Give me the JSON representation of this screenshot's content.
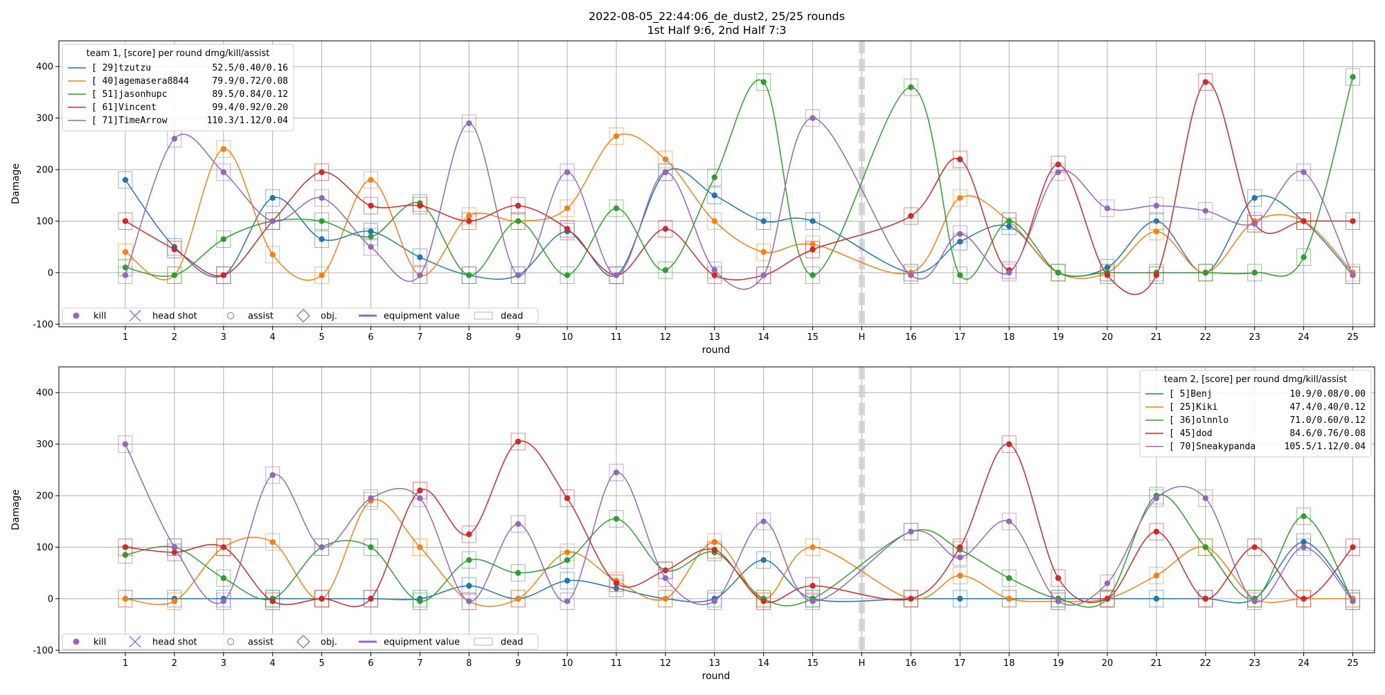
{
  "figure": {
    "title_line1": "2022-08-05_22:44:06_de_dust2, 25/25 rounds",
    "title_line2": "1st Half 9:6, 2nd Half 7:3"
  },
  "colors": {
    "blue": "#1f77b4",
    "orange": "#ff7f0e",
    "green": "#2ca02c",
    "red": "#d62728",
    "purple": "#9467bd",
    "halftime": "#cccccc"
  },
  "chart_data": [
    {
      "type": "line",
      "name": "team 1",
      "ylabel": "Damage",
      "xlabel": "round",
      "ylim": [
        -105,
        450
      ],
      "yticks": [
        -100,
        0,
        100,
        200,
        300,
        400
      ],
      "xtick_labels": [
        "1",
        "2",
        "3",
        "4",
        "5",
        "6",
        "7",
        "8",
        "9",
        "10",
        "11",
        "12",
        "13",
        "14",
        "15",
        "H",
        "16",
        "17",
        "18",
        "19",
        "20",
        "21",
        "22",
        "23",
        "24",
        "25"
      ],
      "halftime_label": "H",
      "grid": true,
      "legend_title": "team 1, [score] per round dmg/kill/assist",
      "legend_placement": "top-left",
      "series": [
        {
          "name": "[ 29]tzutzu",
          "stats": "52.5/0.40/0.16",
          "color": "blue",
          "values": [
            180,
            50,
            -5,
            145,
            65,
            80,
            30,
            -5,
            -5,
            80,
            -5,
            195,
            150,
            100,
            100,
            0,
            60,
            90,
            0,
            10,
            100,
            0,
            145,
            100,
            -5
          ]
        },
        {
          "name": "[ 40]agemasera8844",
          "stats": "79.9/0.72/0.08",
          "color": "orange",
          "values": [
            40,
            -5,
            240,
            35,
            -5,
            180,
            -5,
            110,
            100,
            125,
            265,
            220,
            100,
            40,
            55,
            0,
            145,
            100,
            0,
            0,
            80,
            0,
            100,
            100,
            0
          ]
        },
        {
          "name": "[ 51]jasonhupc",
          "stats": "89.5/0.84/0.12",
          "color": "green",
          "values": [
            10,
            -5,
            65,
            100,
            100,
            70,
            135,
            -5,
            100,
            -5,
            125,
            5,
            185,
            370,
            -5,
            360,
            -5,
            100,
            0,
            0,
            0,
            0,
            0,
            30,
            380
          ]
        },
        {
          "name": "[ 61]Vincent",
          "stats": "99.4/0.92/0.20",
          "color": "red",
          "values": [
            100,
            45,
            -5,
            100,
            195,
            130,
            130,
            100,
            130,
            85,
            -5,
            85,
            -5,
            -5,
            45,
            110,
            220,
            5,
            210,
            -5,
            -5,
            370,
            95,
            100,
            100
          ]
        },
        {
          "name": "[ 71]TimeArrow",
          "stats": "110.3/1.12/0.04",
          "color": "purple",
          "values": [
            -5,
            260,
            195,
            100,
            145,
            50,
            -5,
            290,
            -5,
            195,
            -5,
            195,
            5,
            -5,
            300,
            -5,
            75,
            0,
            195,
            125,
            130,
            120,
            95,
            195,
            -5
          ]
        }
      ]
    },
    {
      "type": "line",
      "name": "team 2",
      "ylabel": "Damage",
      "xlabel": "round",
      "ylim": [
        -105,
        450
      ],
      "yticks": [
        -100,
        0,
        100,
        200,
        300,
        400
      ],
      "xtick_labels": [
        "1",
        "2",
        "3",
        "4",
        "5",
        "6",
        "7",
        "8",
        "9",
        "10",
        "11",
        "12",
        "13",
        "14",
        "15",
        "H",
        "16",
        "17",
        "18",
        "19",
        "20",
        "21",
        "22",
        "23",
        "24",
        "25"
      ],
      "halftime_label": "H",
      "grid": true,
      "legend_title": "team 2, [score] per round dmg/kill/assist",
      "legend_placement": "top-right",
      "series": [
        {
          "name": "[  5]Benj",
          "stats": "10.9/0.08/0.00",
          "color": "blue",
          "values": [
            0,
            0,
            0,
            0,
            0,
            0,
            0,
            25,
            0,
            35,
            20,
            0,
            0,
            75,
            0,
            0,
            0,
            0,
            0,
            0,
            0,
            0,
            0,
            110,
            0
          ]
        },
        {
          "name": "[ 25]Kiki",
          "stats": "47.4/0.40/0.12",
          "color": "orange",
          "values": [
            0,
            -5,
            100,
            110,
            0,
            190,
            100,
            -5,
            0,
            90,
            35,
            0,
            110,
            0,
            100,
            0,
            45,
            0,
            -5,
            0,
            45,
            100,
            0,
            0,
            0
          ]
        },
        {
          "name": "[ 36]olnnlo",
          "stats": "71.0/0.60/0.12",
          "color": "green",
          "values": [
            85,
            100,
            40,
            0,
            100,
            100,
            -5,
            75,
            50,
            75,
            155,
            55,
            90,
            0,
            0,
            130,
            95,
            40,
            0,
            0,
            200,
            100,
            0,
            160,
            -5
          ]
        },
        {
          "name": "[ 45]dod",
          "stats": "84.6/0.76/0.08",
          "color": "red",
          "values": [
            100,
            90,
            100,
            -5,
            0,
            0,
            210,
            125,
            305,
            195,
            30,
            55,
            95,
            -5,
            25,
            0,
            100,
            300,
            40,
            0,
            130,
            0,
            100,
            0,
            100
          ]
        },
        {
          "name": "[ 70]Sneakypanda",
          "stats": "105.5/1.12/0.04",
          "color": "purple",
          "values": [
            300,
            100,
            -5,
            240,
            100,
            195,
            195,
            -5,
            145,
            -5,
            245,
            40,
            -5,
            150,
            -5,
            130,
            80,
            150,
            -5,
            30,
            195,
            195,
            -5,
            100,
            -5
          ]
        }
      ]
    }
  ],
  "marker_legend": {
    "kill": "kill",
    "head_shot": "head shot",
    "assist": "assist",
    "obj": "obj.",
    "equipment_value": "equipment value",
    "dead": "dead"
  }
}
